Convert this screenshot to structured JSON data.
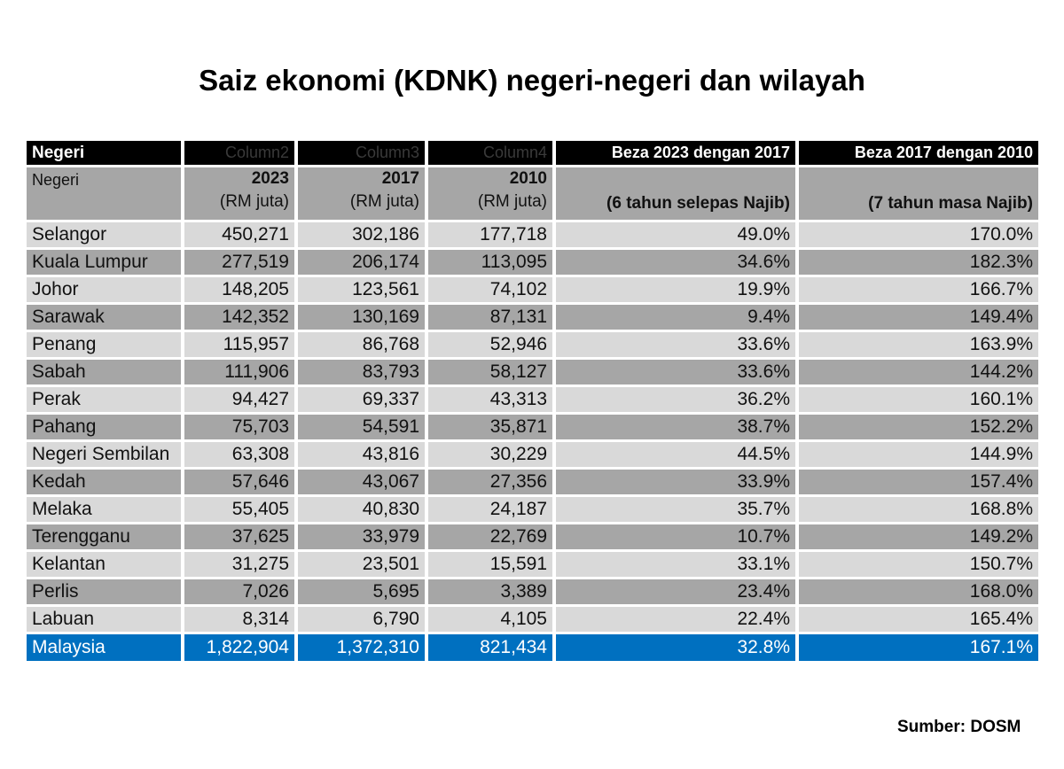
{
  "title": "Saiz ekonomi (KDNK) negeri-negeri dan wilayah",
  "header": [
    "Negeri",
    "Column2",
    "Column3",
    "Column4",
    "Beza 2023 dengan 2017",
    "Beza 2017 dengan 2010"
  ],
  "subheader": {
    "negeri": "Negeri",
    "y2023": "2023",
    "y2017": "2017",
    "y2010": "2010",
    "unit": "(RM juta)",
    "beza1": "(6 tahun selepas Najib)",
    "beza2": "(7 tahun masa Najib)"
  },
  "rows": [
    {
      "state": "Selangor",
      "v2023": "450,271",
      "v2017": "302,186",
      "v2010": "177,718",
      "d1": "49.0%",
      "d2": "170.0%"
    },
    {
      "state": "Kuala Lumpur",
      "v2023": "277,519",
      "v2017": "206,174",
      "v2010": "113,095",
      "d1": "34.6%",
      "d2": "182.3%"
    },
    {
      "state": "Johor",
      "v2023": "148,205",
      "v2017": "123,561",
      "v2010": "74,102",
      "d1": "19.9%",
      "d2": "166.7%"
    },
    {
      "state": "Sarawak",
      "v2023": "142,352",
      "v2017": "130,169",
      "v2010": "87,131",
      "d1": "9.4%",
      "d2": "149.4%"
    },
    {
      "state": "Penang",
      "v2023": "115,957",
      "v2017": "86,768",
      "v2010": "52,946",
      "d1": "33.6%",
      "d2": "163.9%"
    },
    {
      "state": "Sabah",
      "v2023": "111,906",
      "v2017": "83,793",
      "v2010": "58,127",
      "d1": "33.6%",
      "d2": "144.2%"
    },
    {
      "state": "Perak",
      "v2023": "94,427",
      "v2017": "69,337",
      "v2010": "43,313",
      "d1": "36.2%",
      "d2": "160.1%"
    },
    {
      "state": "Pahang",
      "v2023": "75,703",
      "v2017": "54,591",
      "v2010": "35,871",
      "d1": "38.7%",
      "d2": "152.2%"
    },
    {
      "state": "Negeri Sembilan",
      "v2023": "63,308",
      "v2017": "43,816",
      "v2010": "30,229",
      "d1": "44.5%",
      "d2": "144.9%"
    },
    {
      "state": "Kedah",
      "v2023": "57,646",
      "v2017": "43,067",
      "v2010": "27,356",
      "d1": "33.9%",
      "d2": "157.4%"
    },
    {
      "state": "Melaka",
      "v2023": "55,405",
      "v2017": "40,830",
      "v2010": "24,187",
      "d1": "35.7%",
      "d2": "168.8%"
    },
    {
      "state": "Terengganu",
      "v2023": "37,625",
      "v2017": "33,979",
      "v2010": "22,769",
      "d1": "10.7%",
      "d2": "149.2%"
    },
    {
      "state": "Kelantan",
      "v2023": "31,275",
      "v2017": "23,501",
      "v2010": "15,591",
      "d1": "33.1%",
      "d2": "150.7%"
    },
    {
      "state": "Perlis",
      "v2023": "7,026",
      "v2017": "5,695",
      "v2010": "3,389",
      "d1": "23.4%",
      "d2": "168.0%"
    },
    {
      "state": "Labuan",
      "v2023": "8,314",
      "v2017": "6,790",
      "v2010": "4,105",
      "d1": "22.4%",
      "d2": "165.4%"
    }
  ],
  "total": {
    "state": "Malaysia",
    "v2023": "1,822,904",
    "v2017": "1,372,310",
    "v2010": "821,434",
    "d1": "32.8%",
    "d2": "167.1%"
  },
  "source": "Sumber: DOSM",
  "colors": {
    "header_bg": "#000000",
    "light_row": "#d9d9d9",
    "dark_row": "#a6a6a6",
    "total_row": "#0070c0"
  }
}
